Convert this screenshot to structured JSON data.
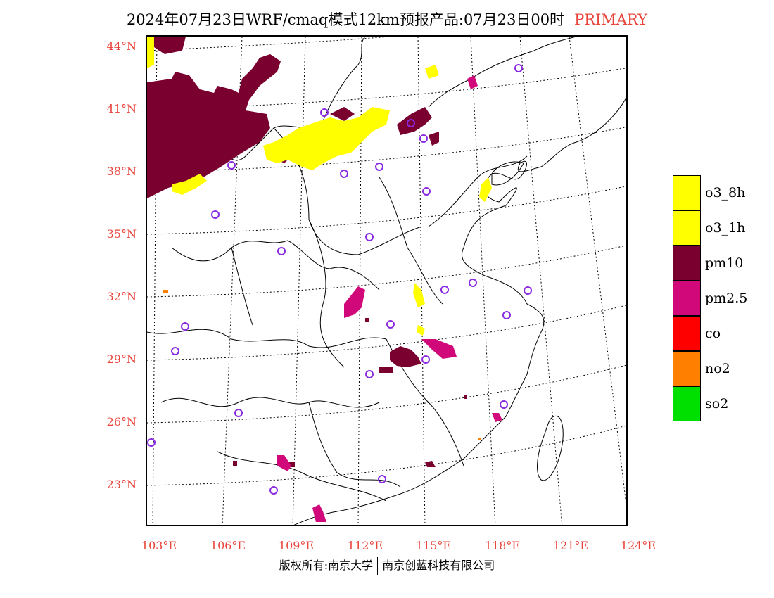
{
  "title": {
    "main": "2024年07月23日WRF/cmaq模式12km预报产品:07月23日00时",
    "tag": "PRIMARY"
  },
  "axes": {
    "lat_labels": [
      "44°N",
      "41°N",
      "38°N",
      "35°N",
      "32°N",
      "29°N",
      "26°N",
      "23°N"
    ],
    "lon_labels": [
      "103°E",
      "106°E",
      "109°E",
      "112°E",
      "115°E",
      "118°E",
      "121°E",
      "124°E"
    ],
    "label_color": "#e8443a"
  },
  "legend": [
    {
      "label": "o3_8h",
      "color": "#ffff00"
    },
    {
      "label": "o3_1h",
      "color": "#ffff00"
    },
    {
      "label": "pm10",
      "color": "#7a0030"
    },
    {
      "label": "pm2.5",
      "color": "#d0087a"
    },
    {
      "label": "co",
      "color": "#ff0000"
    },
    {
      "label": "no2",
      "color": "#ff8000"
    },
    {
      "label": "so2",
      "color": "#00e000"
    }
  ],
  "footer": {
    "copyright": "版权所有:南京大学",
    "company": "南京创蓝科技有限公司"
  }
}
